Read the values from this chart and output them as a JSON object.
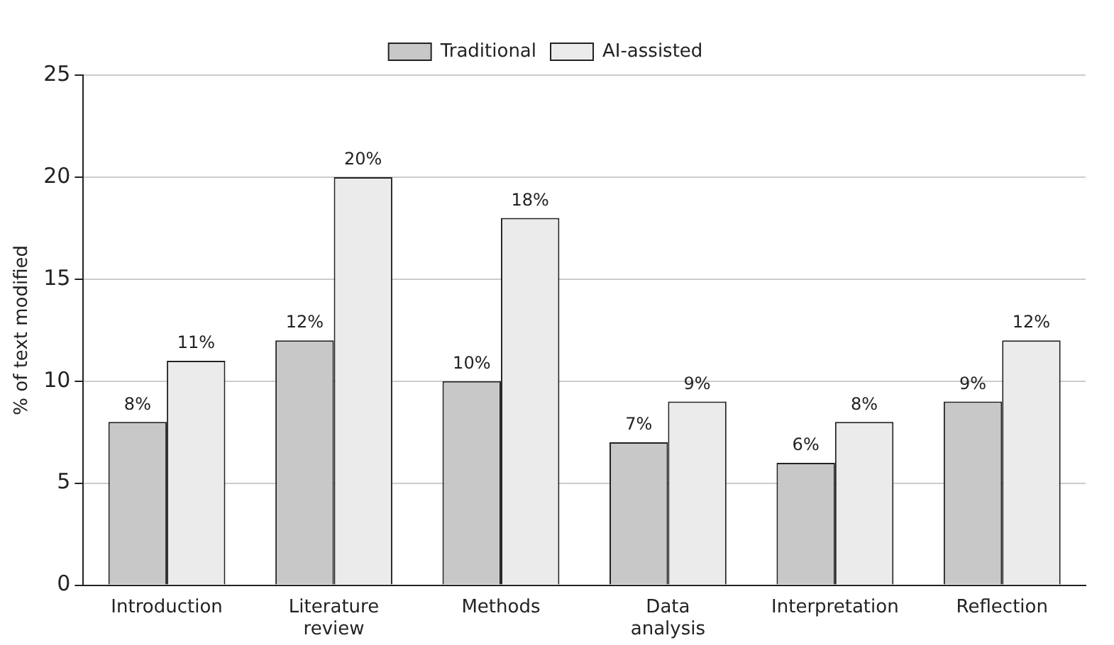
{
  "chart_data": {
    "type": "bar",
    "ylabel": "% of text modified",
    "categories": [
      "Introduction",
      "Literature review",
      "Methods",
      "Data analysis",
      "Interpretation",
      "Reflection"
    ],
    "series": [
      {
        "name": "Traditional",
        "color": "#c8c8c8",
        "values": [
          8,
          12,
          10,
          7,
          6,
          9
        ],
        "value_labels": [
          "8%",
          "12%",
          "10%",
          "7%",
          "6%",
          "9%"
        ]
      },
      {
        "name": "AI-assisted",
        "color": "#ebebeb",
        "values": [
          11,
          20,
          18,
          9,
          8,
          12
        ],
        "value_labels": [
          "11%",
          "20%",
          "18%",
          "9%",
          "8%",
          "12%"
        ]
      }
    ],
    "ylim": [
      0,
      25
    ],
    "yticks": [
      0,
      5,
      10,
      15,
      20,
      25
    ],
    "grid": "y",
    "legend": "top"
  }
}
